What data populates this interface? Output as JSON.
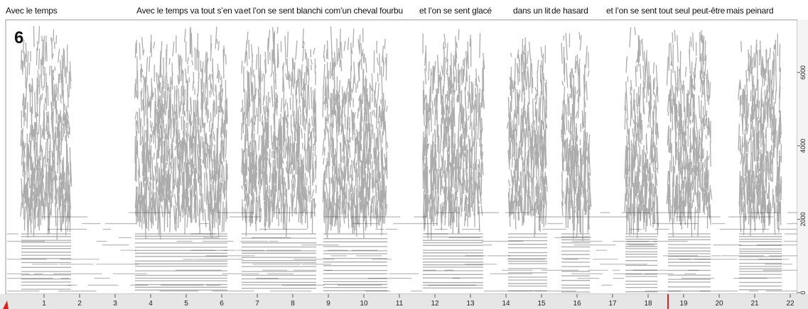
{
  "panel_label": "6",
  "lyrics": [
    "Avec le temps",
    "Avec le temps va tout s’en va",
    "et l’on se sent blanchi com’un cheval fourbu",
    "et l’on se sent glacé",
    "dans un lit",
    "de hasard",
    "et l’on se sent tout seul peut-être",
    "mais peinard"
  ],
  "x_axis": {
    "ticks": [
      1,
      2,
      3,
      4,
      5,
      6,
      7,
      8,
      9,
      10,
      11,
      12,
      13,
      14,
      15,
      16,
      17,
      18,
      19,
      20,
      21,
      22
    ]
  },
  "y_axis": {
    "ticks": [
      0,
      2000,
      4000,
      6000
    ]
  }
}
